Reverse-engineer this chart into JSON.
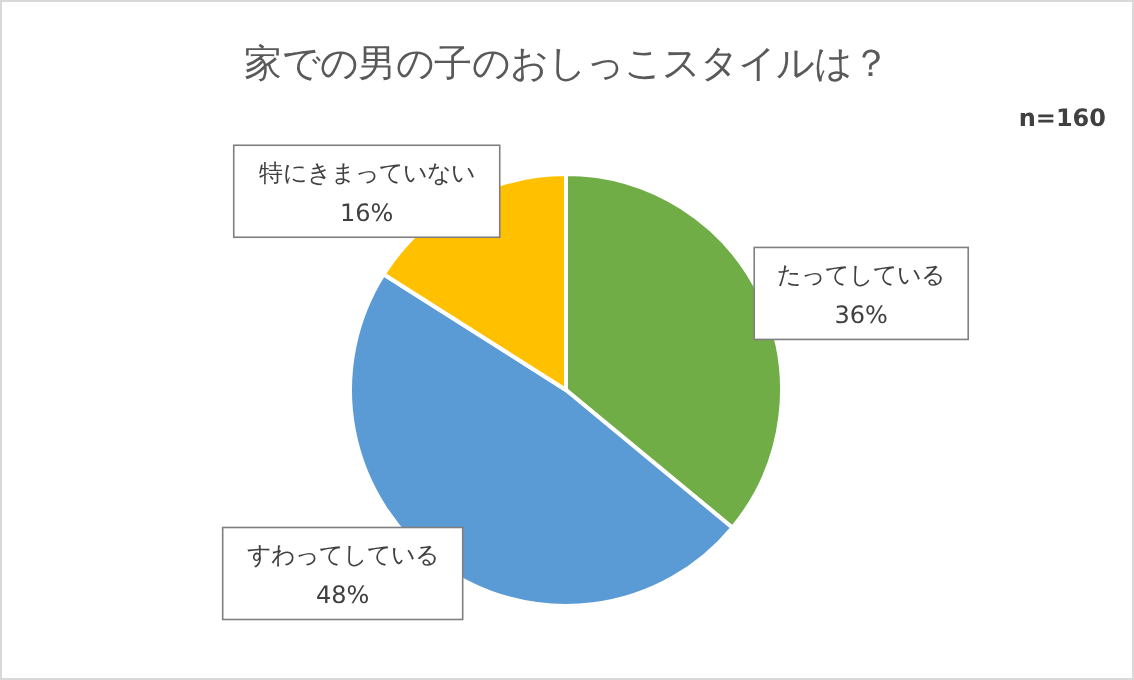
{
  "chart_data": {
    "type": "pie",
    "title": "家での男の子のおしっこスタイルは？",
    "annotations": [
      "n=160"
    ],
    "categories": [
      "たってしている",
      "すわってしている",
      "特にきまっていない"
    ],
    "values": [
      36,
      48,
      16
    ],
    "value_labels": [
      "36%",
      "48%",
      "16%"
    ],
    "colors": [
      "#70ad47",
      "#5b9bd5",
      "#ffc000"
    ]
  }
}
